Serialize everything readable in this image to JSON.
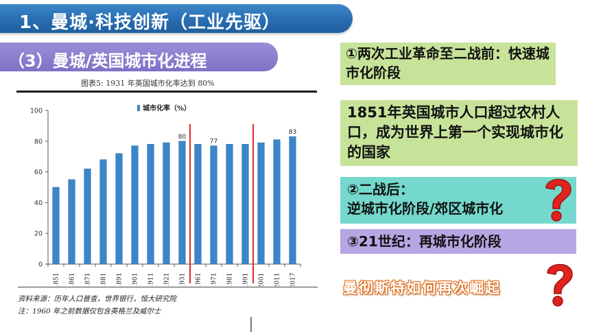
{
  "header": {
    "title": "1、曼城·科技创新（工业先驱）",
    "subtitle": "（3）曼城/英国城市化进程"
  },
  "figure": {
    "caption": "图表5:  1931 年英国城市化率达到 80%",
    "source_note": "资料来源：历年人口普查，世界银行，恒大研究院",
    "footnote": "注：1960 年之前数据仅包含英格兰及威尔士"
  },
  "chart_data": {
    "type": "bar",
    "legend": "城市化率（%）",
    "categories": [
      "1851",
      "1861",
      "1871",
      "1881",
      "1891",
      "1901",
      "1911",
      "1921",
      "1931",
      "1961",
      "1971",
      "1981",
      "1991",
      "2001",
      "2011",
      "2017"
    ],
    "values": [
      50,
      55,
      62,
      68,
      72,
      77,
      78,
      79,
      80,
      78,
      77,
      78,
      78,
      79,
      81,
      83
    ],
    "data_labels": {
      "8": "80",
      "10": "77",
      "15": "83"
    },
    "y_ticks": [
      "0",
      "20",
      "40",
      "60",
      "80",
      "100"
    ],
    "ylim": [
      0,
      100
    ],
    "grid": false,
    "legend_position": "top",
    "bar_color": "#3a86c8",
    "marker_color": "#e02828",
    "markers_after_categories": [
      "1931",
      "1991"
    ]
  },
  "cards": {
    "stage1": "①两次工业革命至二战前：快速城市化阶段",
    "fact": "1851年英国城市人口超过农村人口，成为世界上第一个实现城市化的国家",
    "stage2_title": "②二战后：",
    "stage2_body": "逆城市化阶段/郊区城市化",
    "stage3": "③21世纪：再城市化阶段"
  },
  "question": "曼彻斯特如何再次崛起",
  "colors": {
    "title_bar": "#2a6fb4",
    "subtitle_bar": "#8a7dcc",
    "card_green": "#c7e39a",
    "card_teal": "#74d8cc",
    "card_purple": "#b7a6e4",
    "question_mark": "#e0231f"
  },
  "icons": [
    "question-mark-icon",
    "question-mark-icon"
  ]
}
